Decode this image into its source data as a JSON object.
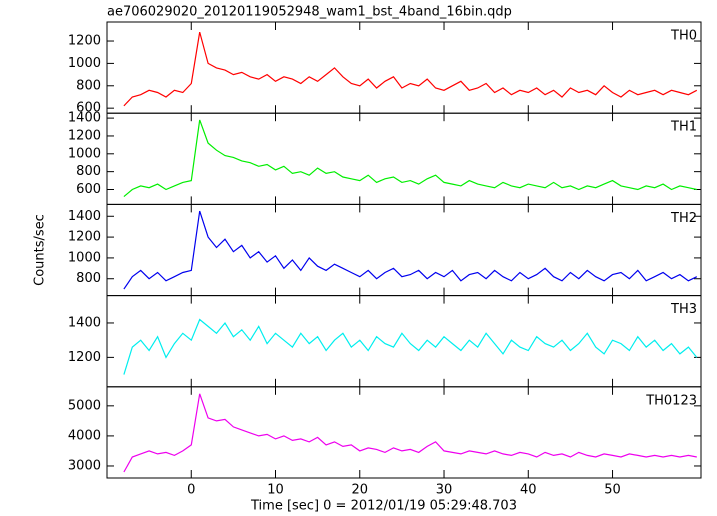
{
  "chart_data": [
    {
      "type": "line",
      "title": "ae706029020_20120119052948_wam1_bst_4band_16bin.qdp",
      "label": "TH0",
      "xlim": [
        -10,
        60.5
      ],
      "ylim": [
        555,
        1370
      ],
      "yticks": [
        600,
        800,
        1000,
        1200
      ],
      "x": [
        -8,
        -7,
        -6,
        -5,
        -4,
        -3,
        -2,
        -1,
        0,
        1,
        2,
        3,
        4,
        5,
        6,
        7,
        8,
        9,
        10,
        11,
        12,
        13,
        14,
        15,
        16,
        17,
        18,
        19,
        20,
        21,
        22,
        23,
        24,
        25,
        26,
        27,
        28,
        29,
        30,
        31,
        32,
        33,
        34,
        35,
        36,
        37,
        38,
        39,
        40,
        41,
        42,
        43,
        44,
        45,
        46,
        47,
        48,
        49,
        50,
        51,
        52,
        53,
        54,
        55,
        56,
        57,
        58,
        59,
        60
      ],
      "series": [
        {
          "color": "#ff0000",
          "values": [
            620,
            700,
            720,
            760,
            740,
            700,
            760,
            740,
            820,
            1280,
            1000,
            960,
            940,
            900,
            920,
            880,
            860,
            900,
            840,
            880,
            860,
            820,
            880,
            840,
            900,
            960,
            880,
            820,
            800,
            860,
            780,
            840,
            880,
            780,
            820,
            800,
            860,
            780,
            760,
            800,
            840,
            760,
            780,
            820,
            740,
            780,
            720,
            760,
            740,
            780,
            720,
            760,
            700,
            780,
            740,
            760,
            720,
            800,
            740,
            700,
            760,
            720,
            740,
            760,
            720,
            760,
            740,
            720,
            760
          ]
        }
      ]
    },
    {
      "type": "line",
      "label": "TH1",
      "xlim": [
        -10,
        60.5
      ],
      "ylim": [
        433,
        1455
      ],
      "yticks": [
        600,
        800,
        1000,
        1200,
        1400
      ],
      "x": [
        -8,
        -7,
        -6,
        -5,
        -4,
        -3,
        -2,
        -1,
        0,
        1,
        2,
        3,
        4,
        5,
        6,
        7,
        8,
        9,
        10,
        11,
        12,
        13,
        14,
        15,
        16,
        17,
        18,
        19,
        20,
        21,
        22,
        23,
        24,
        25,
        26,
        27,
        28,
        29,
        30,
        31,
        32,
        33,
        34,
        35,
        36,
        37,
        38,
        39,
        40,
        41,
        42,
        43,
        44,
        45,
        46,
        47,
        48,
        49,
        50,
        51,
        52,
        53,
        54,
        55,
        56,
        57,
        58,
        59,
        60
      ],
      "series": [
        {
          "color": "#00ee00",
          "values": [
            520,
            600,
            640,
            620,
            660,
            600,
            640,
            680,
            700,
            1380,
            1120,
            1040,
            980,
            960,
            920,
            900,
            860,
            880,
            820,
            860,
            780,
            800,
            760,
            840,
            780,
            800,
            740,
            720,
            700,
            760,
            680,
            720,
            740,
            680,
            700,
            660,
            720,
            760,
            680,
            660,
            640,
            700,
            660,
            640,
            620,
            680,
            640,
            620,
            660,
            640,
            620,
            680,
            620,
            640,
            600,
            640,
            620,
            660,
            700,
            640,
            620,
            600,
            640,
            620,
            660,
            600,
            640,
            620,
            600
          ]
        }
      ]
    },
    {
      "type": "line",
      "label": "TH2",
      "ylabel": "Counts/sec",
      "xlim": [
        -10,
        60.5
      ],
      "ylim": [
        638,
        1514
      ],
      "yticks": [
        800,
        1000,
        1200,
        1400
      ],
      "x": [
        -8,
        -7,
        -6,
        -5,
        -4,
        -3,
        -2,
        -1,
        0,
        1,
        2,
        3,
        4,
        5,
        6,
        7,
        8,
        9,
        10,
        11,
        12,
        13,
        14,
        15,
        16,
        17,
        18,
        19,
        20,
        21,
        22,
        23,
        24,
        25,
        26,
        27,
        28,
        29,
        30,
        31,
        32,
        33,
        34,
        35,
        36,
        37,
        38,
        39,
        40,
        41,
        42,
        43,
        44,
        45,
        46,
        47,
        48,
        49,
        50,
        51,
        52,
        53,
        54,
        55,
        56,
        57,
        58,
        59,
        60
      ],
      "series": [
        {
          "color": "#0000ee",
          "values": [
            700,
            820,
            880,
            800,
            860,
            780,
            820,
            860,
            880,
            1450,
            1200,
            1100,
            1180,
            1060,
            1120,
            1000,
            1060,
            960,
            1020,
            900,
            980,
            880,
            1000,
            920,
            880,
            940,
            900,
            860,
            820,
            880,
            800,
            860,
            900,
            820,
            840,
            880,
            800,
            860,
            820,
            880,
            780,
            840,
            860,
            800,
            880,
            820,
            780,
            860,
            800,
            840,
            900,
            820,
            780,
            860,
            800,
            880,
            820,
            780,
            840,
            860,
            800,
            880,
            780,
            820,
            860,
            800,
            840,
            780,
            820
          ]
        }
      ]
    },
    {
      "type": "line",
      "label": "TH3",
      "xlim": [
        -10,
        60.5
      ],
      "ylim": [
        1029,
        1559
      ],
      "yticks": [
        1200,
        1400
      ],
      "x": [
        -8,
        -7,
        -6,
        -5,
        -4,
        -3,
        -2,
        -1,
        0,
        1,
        2,
        3,
        4,
        5,
        6,
        7,
        8,
        9,
        10,
        11,
        12,
        13,
        14,
        15,
        16,
        17,
        18,
        19,
        20,
        21,
        22,
        23,
        24,
        25,
        26,
        27,
        28,
        29,
        30,
        31,
        32,
        33,
        34,
        35,
        36,
        37,
        38,
        39,
        40,
        41,
        42,
        43,
        44,
        45,
        46,
        47,
        48,
        49,
        50,
        51,
        52,
        53,
        54,
        55,
        56,
        57,
        58,
        59,
        60
      ],
      "series": [
        {
          "color": "#00eeee",
          "values": [
            1100,
            1260,
            1300,
            1240,
            1320,
            1200,
            1280,
            1340,
            1300,
            1420,
            1380,
            1340,
            1400,
            1320,
            1360,
            1300,
            1380,
            1280,
            1340,
            1300,
            1260,
            1340,
            1280,
            1320,
            1240,
            1300,
            1340,
            1260,
            1300,
            1240,
            1320,
            1280,
            1260,
            1340,
            1280,
            1240,
            1300,
            1260,
            1320,
            1280,
            1240,
            1300,
            1260,
            1340,
            1280,
            1220,
            1300,
            1260,
            1240,
            1320,
            1280,
            1260,
            1300,
            1240,
            1280,
            1340,
            1260,
            1220,
            1300,
            1280,
            1240,
            1320,
            1260,
            1300,
            1240,
            1280,
            1220,
            1260,
            1200
          ]
        }
      ]
    },
    {
      "type": "line",
      "label": "TH0123",
      "xlabel": "Time [sec] 0 = 2012/01/19 05:29:48.703",
      "xlim": [
        -10,
        60.5
      ],
      "ylim": [
        2600,
        5633
      ],
      "yticks": [
        3000,
        4000,
        5000
      ],
      "xticks": [
        0,
        10,
        20,
        30,
        40,
        50
      ],
      "x": [
        -8,
        -7,
        -6,
        -5,
        -4,
        -3,
        -2,
        -1,
        0,
        1,
        2,
        3,
        4,
        5,
        6,
        7,
        8,
        9,
        10,
        11,
        12,
        13,
        14,
        15,
        16,
        17,
        18,
        19,
        20,
        21,
        22,
        23,
        24,
        25,
        26,
        27,
        28,
        29,
        30,
        31,
        32,
        33,
        34,
        35,
        36,
        37,
        38,
        39,
        40,
        41,
        42,
        43,
        44,
        45,
        46,
        47,
        48,
        49,
        50,
        51,
        52,
        53,
        54,
        55,
        56,
        57,
        58,
        59,
        60
      ],
      "series": [
        {
          "color": "#ee00ee",
          "values": [
            2800,
            3300,
            3400,
            3500,
            3400,
            3450,
            3350,
            3500,
            3700,
            5400,
            4600,
            4500,
            4550,
            4300,
            4200,
            4100,
            4000,
            4050,
            3900,
            4000,
            3850,
            3900,
            3800,
            3950,
            3700,
            3800,
            3650,
            3700,
            3500,
            3600,
            3550,
            3450,
            3600,
            3500,
            3550,
            3450,
            3650,
            3800,
            3500,
            3450,
            3400,
            3500,
            3450,
            3400,
            3500,
            3400,
            3350,
            3450,
            3400,
            3300,
            3450,
            3350,
            3400,
            3300,
            3450,
            3350,
            3300,
            3400,
            3350,
            3300,
            3400,
            3350,
            3300,
            3350,
            3300,
            3350,
            3300,
            3350,
            3300
          ]
        }
      ]
    }
  ]
}
